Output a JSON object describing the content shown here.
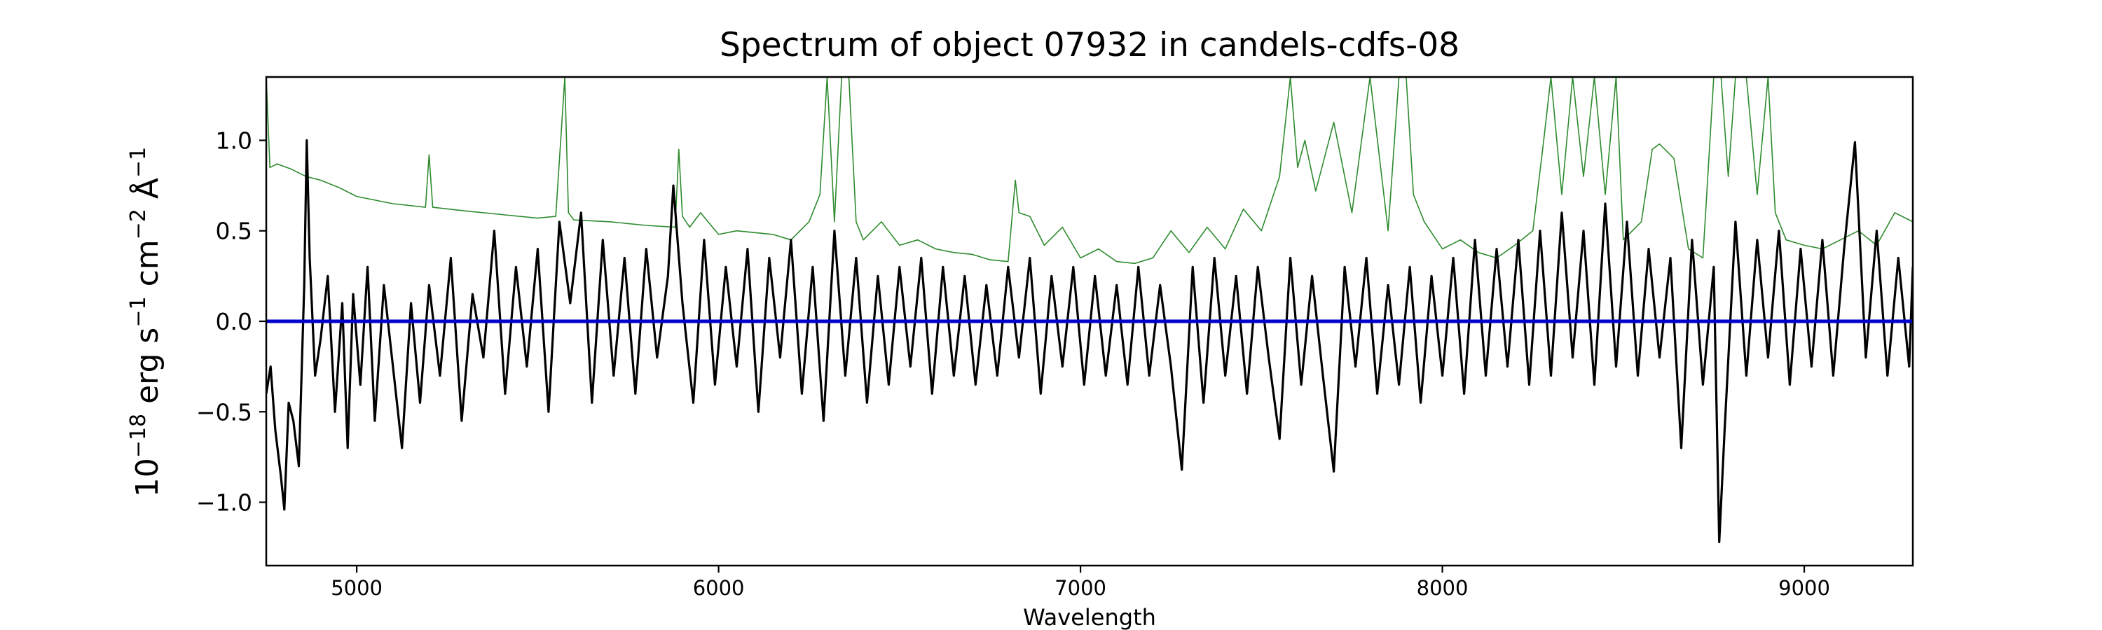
{
  "chart_data": {
    "type": "line",
    "title": "Spectrum of object 07932 in candels-cdfs-08",
    "xlabel": "Wavelength",
    "ylabel": {
      "base": "10",
      "base_exp": "−18",
      "unit1": " erg s",
      "exp1": "−1",
      "unit2": " cm",
      "exp2": "−2",
      "unit3": " Å",
      "exp3": "−1"
    },
    "xlim": [
      4750,
      9300
    ],
    "ylim": [
      -1.35,
      1.35
    ],
    "x_ticks": [
      5000,
      6000,
      7000,
      8000,
      9000
    ],
    "x_tick_labels": [
      "5000",
      "6000",
      "7000",
      "8000",
      "9000"
    ],
    "y_ticks": [
      -1.0,
      -0.5,
      0.0,
      0.5,
      1.0
    ],
    "y_tick_labels": [
      "−1.0",
      "−0.5",
      "0.0",
      "0.5",
      "1.0"
    ],
    "grid": false,
    "colors": {
      "flux": "#000000",
      "error": "#2e8b2e",
      "zero_line": "#0000cc"
    },
    "series": [
      {
        "role": "zero",
        "x": [
          4750,
          9300
        ],
        "y": [
          0,
          0
        ]
      },
      {
        "role": "flux",
        "x": [
          4750,
          4762,
          4775,
          4790,
          4800,
          4812,
          4825,
          4840,
          4855,
          4862,
          4870,
          4885,
          4900,
          4920,
          4940,
          4960,
          4975,
          4990,
          5010,
          5030,
          5050,
          5075,
          5100,
          5125,
          5150,
          5175,
          5200,
          5230,
          5260,
          5290,
          5320,
          5350,
          5380,
          5410,
          5440,
          5470,
          5500,
          5530,
          5560,
          5590,
          5620,
          5650,
          5680,
          5710,
          5740,
          5770,
          5800,
          5830,
          5860,
          5875,
          5900,
          5930,
          5960,
          5990,
          6020,
          6050,
          6080,
          6110,
          6140,
          6170,
          6200,
          6230,
          6260,
          6290,
          6320,
          6350,
          6380,
          6410,
          6440,
          6470,
          6500,
          6530,
          6560,
          6590,
          6620,
          6650,
          6680,
          6710,
          6740,
          6770,
          6800,
          6830,
          6860,
          6890,
          6920,
          6950,
          6980,
          7010,
          7040,
          7070,
          7100,
          7130,
          7160,
          7190,
          7220,
          7250,
          7280,
          7310,
          7340,
          7370,
          7400,
          7430,
          7460,
          7490,
          7520,
          7550,
          7580,
          7610,
          7640,
          7670,
          7700,
          7730,
          7760,
          7790,
          7820,
          7850,
          7880,
          7910,
          7940,
          7970,
          8000,
          8030,
          8060,
          8090,
          8120,
          8150,
          8180,
          8210,
          8240,
          8270,
          8300,
          8330,
          8360,
          8390,
          8420,
          8450,
          8480,
          8510,
          8540,
          8570,
          8600,
          8630,
          8660,
          8690,
          8720,
          8750,
          8765,
          8780,
          8810,
          8840,
          8870,
          8900,
          8930,
          8960,
          8990,
          9020,
          9050,
          9080,
          9110,
          9140,
          9170,
          9200,
          9230,
          9260,
          9290,
          9300
        ],
        "y": [
          -0.4,
          -0.25,
          -0.6,
          -0.85,
          -1.04,
          -0.45,
          -0.55,
          -0.8,
          0.2,
          1.0,
          0.35,
          -0.3,
          -0.1,
          0.25,
          -0.5,
          0.1,
          -0.7,
          0.15,
          -0.35,
          0.3,
          -0.55,
          0.2,
          -0.25,
          -0.7,
          0.1,
          -0.45,
          0.2,
          -0.3,
          0.35,
          -0.55,
          0.15,
          -0.2,
          0.5,
          -0.4,
          0.3,
          -0.25,
          0.4,
          -0.5,
          0.55,
          0.1,
          0.6,
          -0.45,
          0.45,
          -0.3,
          0.35,
          -0.4,
          0.4,
          -0.2,
          0.25,
          0.75,
          0.1,
          -0.45,
          0.45,
          -0.35,
          0.3,
          -0.25,
          0.4,
          -0.5,
          0.35,
          -0.2,
          0.45,
          -0.4,
          0.3,
          -0.55,
          0.5,
          -0.3,
          0.35,
          -0.45,
          0.25,
          -0.35,
          0.3,
          -0.25,
          0.35,
          -0.4,
          0.3,
          -0.3,
          0.25,
          -0.35,
          0.2,
          -0.3,
          0.3,
          -0.2,
          0.35,
          -0.4,
          0.25,
          -0.25,
          0.3,
          -0.35,
          0.25,
          -0.3,
          0.2,
          -0.35,
          0.3,
          -0.3,
          0.2,
          -0.25,
          -0.82,
          0.3,
          -0.45,
          0.35,
          -0.3,
          0.25,
          -0.4,
          0.3,
          -0.2,
          -0.65,
          0.35,
          -0.35,
          0.25,
          -0.3,
          -0.83,
          0.3,
          -0.25,
          0.35,
          -0.4,
          0.2,
          -0.35,
          0.3,
          -0.45,
          0.25,
          -0.3,
          0.35,
          -0.4,
          0.45,
          -0.3,
          0.4,
          -0.25,
          0.45,
          -0.35,
          0.5,
          -0.3,
          0.6,
          -0.2,
          0.5,
          -0.35,
          0.65,
          -0.25,
          0.55,
          -0.3,
          0.4,
          -0.2,
          0.35,
          -0.7,
          0.45,
          -0.35,
          0.3,
          -1.22,
          -0.6,
          0.55,
          -0.3,
          0.45,
          -0.2,
          0.5,
          -0.35,
          0.4,
          -0.25,
          0.45,
          -0.3,
          0.4,
          0.99,
          -0.2,
          0.5,
          -0.3,
          0.35,
          -0.25,
          0.3
        ]
      },
      {
        "role": "error",
        "x": [
          4750,
          4760,
          4780,
          4820,
          4860,
          4900,
          4950,
          5000,
          5100,
          5190,
          5200,
          5210,
          5300,
          5400,
          5500,
          5550,
          5575,
          5585,
          5600,
          5700,
          5800,
          5880,
          5890,
          5900,
          5920,
          5950,
          6000,
          6050,
          6100,
          6150,
          6200,
          6250,
          6280,
          6300,
          6320,
          6340,
          6360,
          6380,
          6400,
          6450,
          6500,
          6550,
          6600,
          6650,
          6700,
          6750,
          6800,
          6820,
          6830,
          6860,
          6900,
          6950,
          7000,
          7050,
          7100,
          7150,
          7200,
          7250,
          7300,
          7350,
          7400,
          7450,
          7500,
          7550,
          7580,
          7600,
          7620,
          7650,
          7700,
          7750,
          7800,
          7850,
          7880,
          7900,
          7920,
          7950,
          8000,
          8050,
          8100,
          8150,
          8200,
          8250,
          8280,
          8300,
          8330,
          8360,
          8390,
          8420,
          8450,
          8480,
          8500,
          8550,
          8580,
          8600,
          8640,
          8680,
          8720,
          8750,
          8770,
          8790,
          8810,
          8840,
          8870,
          8900,
          8920,
          8950,
          9000,
          9050,
          9100,
          9150,
          9200,
          9250,
          9300
        ],
        "y": [
          1.35,
          0.85,
          0.87,
          0.84,
          0.8,
          0.78,
          0.74,
          0.69,
          0.65,
          0.63,
          0.92,
          0.63,
          0.61,
          0.59,
          0.57,
          0.58,
          1.35,
          0.6,
          0.56,
          0.55,
          0.53,
          0.52,
          0.95,
          0.58,
          0.52,
          0.6,
          0.48,
          0.5,
          0.49,
          0.48,
          0.45,
          0.55,
          0.7,
          1.35,
          0.55,
          1.35,
          1.35,
          0.55,
          0.45,
          0.55,
          0.42,
          0.45,
          0.4,
          0.38,
          0.37,
          0.34,
          0.33,
          0.78,
          0.6,
          0.58,
          0.42,
          0.52,
          0.35,
          0.4,
          0.33,
          0.32,
          0.35,
          0.5,
          0.38,
          0.52,
          0.4,
          0.62,
          0.5,
          0.8,
          1.35,
          0.85,
          1.0,
          0.72,
          1.1,
          0.6,
          1.35,
          0.5,
          1.35,
          1.35,
          0.7,
          0.55,
          0.4,
          0.45,
          0.38,
          0.35,
          0.42,
          0.5,
          1.0,
          1.35,
          0.7,
          1.35,
          0.8,
          1.35,
          0.7,
          1.35,
          0.45,
          0.55,
          0.95,
          0.98,
          0.9,
          0.4,
          0.35,
          1.35,
          1.35,
          0.8,
          1.35,
          1.35,
          0.7,
          1.35,
          0.6,
          0.45,
          0.42,
          0.4,
          0.45,
          0.5,
          0.42,
          0.6,
          0.55
        ]
      }
    ]
  }
}
